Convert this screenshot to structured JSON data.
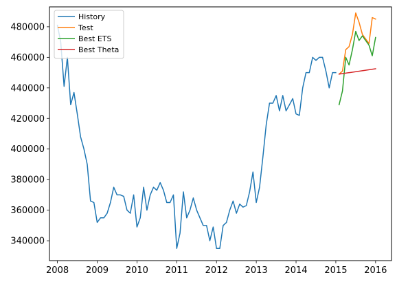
{
  "chart_data": {
    "type": "line",
    "title": "",
    "xlabel": "",
    "ylabel": "",
    "xlim": [
      2007.8,
      2016.4
    ],
    "ylim": [
      327000,
      493000
    ],
    "xticks": [
      2008,
      2009,
      2010,
      2011,
      2012,
      2013,
      2014,
      2015,
      2016
    ],
    "xtick_labels": [
      "2008",
      "2009",
      "2010",
      "2011",
      "2012",
      "2013",
      "2014",
      "2015",
      "2016"
    ],
    "yticks": [
      340000,
      360000,
      380000,
      400000,
      420000,
      440000,
      460000,
      480000
    ],
    "ytick_labels": [
      "340000",
      "360000",
      "380000",
      "400000",
      "420000",
      "440000",
      "460000",
      "480000"
    ],
    "grid": false,
    "legend_position": "top-left",
    "series": [
      {
        "name": "History",
        "color": "#1f77b4",
        "x": [
          2008.0,
          2008.083,
          2008.167,
          2008.25,
          2008.333,
          2008.417,
          2008.5,
          2008.583,
          2008.667,
          2008.75,
          2008.833,
          2008.917,
          2009.0,
          2009.083,
          2009.167,
          2009.25,
          2009.333,
          2009.417,
          2009.5,
          2009.583,
          2009.667,
          2009.75,
          2009.833,
          2009.917,
          2010.0,
          2010.083,
          2010.167,
          2010.25,
          2010.333,
          2010.417,
          2010.5,
          2010.583,
          2010.667,
          2010.75,
          2010.833,
          2010.917,
          2011.0,
          2011.083,
          2011.167,
          2011.25,
          2011.333,
          2011.417,
          2011.5,
          2011.583,
          2011.667,
          2011.75,
          2011.833,
          2011.917,
          2012.0,
          2012.083,
          2012.167,
          2012.25,
          2012.333,
          2012.417,
          2012.5,
          2012.583,
          2012.667,
          2012.75,
          2012.833,
          2012.917,
          2013.0,
          2013.083,
          2013.167,
          2013.25,
          2013.333,
          2013.417,
          2013.5,
          2013.583,
          2013.667,
          2013.75,
          2013.833,
          2013.917,
          2014.0,
          2014.083,
          2014.167,
          2014.25,
          2014.333,
          2014.417,
          2014.5,
          2014.583,
          2014.667,
          2014.75,
          2014.833,
          2014.917,
          2015.0
        ],
        "values": [
          481000,
          470000,
          441000,
          460000,
          429000,
          437000,
          423000,
          408000,
          400000,
          390000,
          366000,
          365000,
          352000,
          355000,
          355000,
          358000,
          365000,
          375000,
          370000,
          370000,
          369000,
          360000,
          358000,
          370000,
          349000,
          355000,
          375000,
          360000,
          370000,
          375000,
          373000,
          378000,
          373000,
          365000,
          365000,
          370000,
          335000,
          345000,
          372000,
          355000,
          360000,
          368000,
          360000,
          355000,
          350000,
          350000,
          340000,
          349000,
          335000,
          335000,
          350000,
          352000,
          360000,
          366000,
          358000,
          364000,
          362000,
          363000,
          372000,
          385000,
          365000,
          375000,
          395000,
          416000,
          430000,
          430000,
          435000,
          425000,
          435000,
          425000,
          429000,
          433000,
          423000,
          422000,
          440000,
          450000,
          450000,
          460000,
          458000,
          460000,
          460000,
          451000,
          440000,
          450000,
          450000
        ]
      },
      {
        "name": "Test",
        "color": "#ff7f0e",
        "x": [
          2015.083,
          2015.167,
          2015.25,
          2015.333,
          2015.417,
          2015.5,
          2015.583,
          2015.667,
          2015.75,
          2015.833,
          2015.917,
          2016.0
        ],
        "values": [
          449000,
          451000,
          465000,
          467000,
          475000,
          489000,
          483000,
          475000,
          472000,
          469000,
          486000,
          485000
        ]
      },
      {
        "name": "Best ETS",
        "color": "#2ca02c",
        "x": [
          2015.083,
          2015.167,
          2015.25,
          2015.333,
          2015.417,
          2015.5,
          2015.583,
          2015.667,
          2015.75,
          2015.833,
          2015.917,
          2016.0
        ],
        "values": [
          429000,
          438000,
          460000,
          455000,
          465000,
          477000,
          471000,
          474000,
          471000,
          468000,
          461000,
          473000
        ]
      },
      {
        "name": "Best Theta",
        "color": "#d62728",
        "x": [
          2015.083,
          2016.0
        ],
        "values": [
          449000,
          452500
        ]
      }
    ]
  }
}
